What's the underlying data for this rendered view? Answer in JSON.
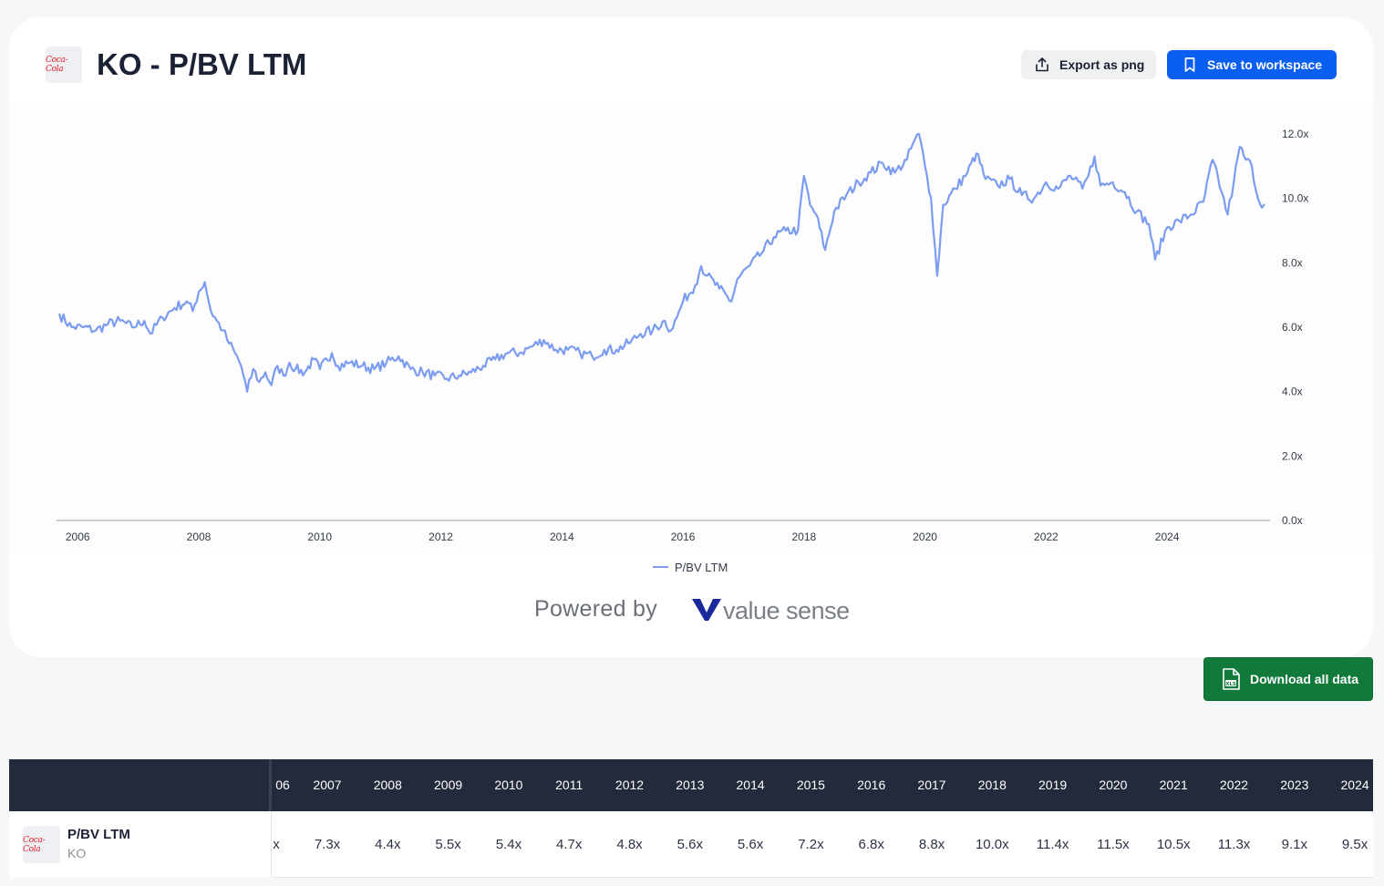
{
  "header": {
    "logo_text": "Coca-Cola",
    "title": "KO - P/BV LTM",
    "export_label": "Export as png",
    "save_label": "Save to workspace"
  },
  "branding": {
    "powered_by": "Powered by",
    "brand_name": "value sense"
  },
  "download_label": "Download all data",
  "colors": {
    "line": "#7b9cf0",
    "primary": "#0b5ff0",
    "download": "#117a3a",
    "table_header": "#222a3b"
  },
  "icons": {
    "export": "export-icon",
    "save": "bookmark-icon",
    "download": "xls-file-icon"
  },
  "chart_data": {
    "type": "line",
    "title": "",
    "xlabel": "",
    "ylabel": "",
    "x_ticks": [
      "2006",
      "2008",
      "2010",
      "2012",
      "2014",
      "2016",
      "2018",
      "2020",
      "2022",
      "2024"
    ],
    "y_ticks": [
      "0.0x",
      "2.0x",
      "4.0x",
      "6.0x",
      "8.0x",
      "10.0x",
      "12.0x"
    ],
    "xlim": [
      2005.65,
      2025.7
    ],
    "ylim": [
      0,
      12
    ],
    "y_axis_position": "right",
    "grid": false,
    "legend_position": "bottom",
    "series": [
      {
        "name": "P/BV LTM",
        "points": [
          [
            2005.7,
            6.4
          ],
          [
            2005.9,
            6.0
          ],
          [
            2006.1,
            6.0
          ],
          [
            2006.3,
            5.9
          ],
          [
            2006.5,
            6.1
          ],
          [
            2006.7,
            6.2
          ],
          [
            2006.9,
            6.0
          ],
          [
            2007.1,
            6.2
          ],
          [
            2007.2,
            5.8
          ],
          [
            2007.4,
            6.3
          ],
          [
            2007.6,
            6.6
          ],
          [
            2007.8,
            6.8
          ],
          [
            2007.9,
            6.5
          ],
          [
            2008.0,
            7.1
          ],
          [
            2008.1,
            7.4
          ],
          [
            2008.2,
            6.5
          ],
          [
            2008.3,
            6.2
          ],
          [
            2008.4,
            5.9
          ],
          [
            2008.5,
            5.5
          ],
          [
            2008.6,
            5.2
          ],
          [
            2008.7,
            4.8
          ],
          [
            2008.8,
            4.0
          ],
          [
            2008.9,
            4.7
          ],
          [
            2009.0,
            4.3
          ],
          [
            2009.1,
            4.6
          ],
          [
            2009.2,
            4.2
          ],
          [
            2009.3,
            4.8
          ],
          [
            2009.4,
            4.5
          ],
          [
            2009.5,
            4.9
          ],
          [
            2009.6,
            4.7
          ],
          [
            2009.75,
            4.6
          ],
          [
            2009.9,
            5.0
          ],
          [
            2010.0,
            4.7
          ],
          [
            2010.2,
            5.2
          ],
          [
            2010.3,
            4.8
          ],
          [
            2010.5,
            4.9
          ],
          [
            2010.7,
            4.8
          ],
          [
            2010.9,
            4.7
          ],
          [
            2011.1,
            4.9
          ],
          [
            2011.3,
            5.1
          ],
          [
            2011.5,
            4.7
          ],
          [
            2011.7,
            4.6
          ],
          [
            2011.9,
            4.5
          ],
          [
            2012.1,
            4.4
          ],
          [
            2012.3,
            4.5
          ],
          [
            2012.5,
            4.6
          ],
          [
            2012.7,
            4.8
          ],
          [
            2012.9,
            5.0
          ],
          [
            2013.1,
            5.2
          ],
          [
            2013.3,
            5.2
          ],
          [
            2013.5,
            5.4
          ],
          [
            2013.7,
            5.6
          ],
          [
            2013.9,
            5.3
          ],
          [
            2014.1,
            5.3
          ],
          [
            2014.3,
            5.2
          ],
          [
            2014.5,
            5.1
          ],
          [
            2014.7,
            5.3
          ],
          [
            2014.9,
            5.3
          ],
          [
            2015.1,
            5.5
          ],
          [
            2015.3,
            5.8
          ],
          [
            2015.5,
            5.9
          ],
          [
            2015.7,
            6.2
          ],
          [
            2015.8,
            5.9
          ],
          [
            2015.9,
            6.3
          ],
          [
            2016.0,
            6.8
          ],
          [
            2016.2,
            7.3
          ],
          [
            2016.3,
            7.9
          ],
          [
            2016.4,
            7.6
          ],
          [
            2016.6,
            7.2
          ],
          [
            2016.8,
            6.8
          ],
          [
            2016.9,
            7.5
          ],
          [
            2017.1,
            7.9
          ],
          [
            2017.3,
            8.3
          ],
          [
            2017.5,
            8.8
          ],
          [
            2017.7,
            9.0
          ],
          [
            2017.9,
            9.0
          ],
          [
            2018.0,
            10.7
          ],
          [
            2018.1,
            9.8
          ],
          [
            2018.2,
            9.5
          ],
          [
            2018.35,
            8.4
          ],
          [
            2018.5,
            9.6
          ],
          [
            2018.7,
            10.1
          ],
          [
            2018.9,
            10.5
          ],
          [
            2019.1,
            10.8
          ],
          [
            2019.3,
            11.1
          ],
          [
            2019.5,
            10.8
          ],
          [
            2019.7,
            11.2
          ],
          [
            2019.8,
            11.7
          ],
          [
            2019.9,
            12.0
          ],
          [
            2020.0,
            11.0
          ],
          [
            2020.1,
            10.0
          ],
          [
            2020.2,
            7.6
          ],
          [
            2020.3,
            9.8
          ],
          [
            2020.5,
            10.3
          ],
          [
            2020.7,
            10.8
          ],
          [
            2020.85,
            11.4
          ],
          [
            2021.0,
            10.6
          ],
          [
            2021.2,
            10.4
          ],
          [
            2021.4,
            10.6
          ],
          [
            2021.6,
            10.1
          ],
          [
            2021.8,
            10.0
          ],
          [
            2022.0,
            10.5
          ],
          [
            2022.2,
            10.3
          ],
          [
            2022.4,
            10.7
          ],
          [
            2022.6,
            10.3
          ],
          [
            2022.7,
            10.7
          ],
          [
            2022.8,
            11.3
          ],
          [
            2022.9,
            10.4
          ],
          [
            2023.1,
            10.5
          ],
          [
            2023.3,
            10.2
          ],
          [
            2023.5,
            9.6
          ],
          [
            2023.7,
            9.2
          ],
          [
            2023.8,
            8.1
          ],
          [
            2024.0,
            9.1
          ],
          [
            2024.2,
            9.3
          ],
          [
            2024.4,
            9.5
          ],
          [
            2024.6,
            9.9
          ],
          [
            2024.75,
            11.2
          ],
          [
            2024.9,
            10.2
          ],
          [
            2025.0,
            9.5
          ],
          [
            2025.1,
            10.5
          ],
          [
            2025.2,
            11.6
          ],
          [
            2025.3,
            11.2
          ],
          [
            2025.4,
            11.0
          ],
          [
            2025.5,
            10.0
          ],
          [
            2025.6,
            9.8
          ]
        ]
      }
    ]
  },
  "table": {
    "row_label": "P/BV LTM",
    "row_ticker": "KO",
    "first_year_partial": "06",
    "first_value_partial": "x",
    "years": [
      "2007",
      "2008",
      "2009",
      "2010",
      "2011",
      "2012",
      "2013",
      "2014",
      "2015",
      "2016",
      "2017",
      "2018",
      "2019",
      "2020",
      "2021",
      "2022",
      "2023",
      "2024"
    ],
    "values": [
      "7.3x",
      "4.4x",
      "5.5x",
      "5.4x",
      "4.7x",
      "4.8x",
      "5.6x",
      "5.6x",
      "7.2x",
      "6.8x",
      "8.8x",
      "10.0x",
      "11.4x",
      "11.5x",
      "10.5x",
      "11.3x",
      "9.1x",
      "9.5x"
    ]
  }
}
